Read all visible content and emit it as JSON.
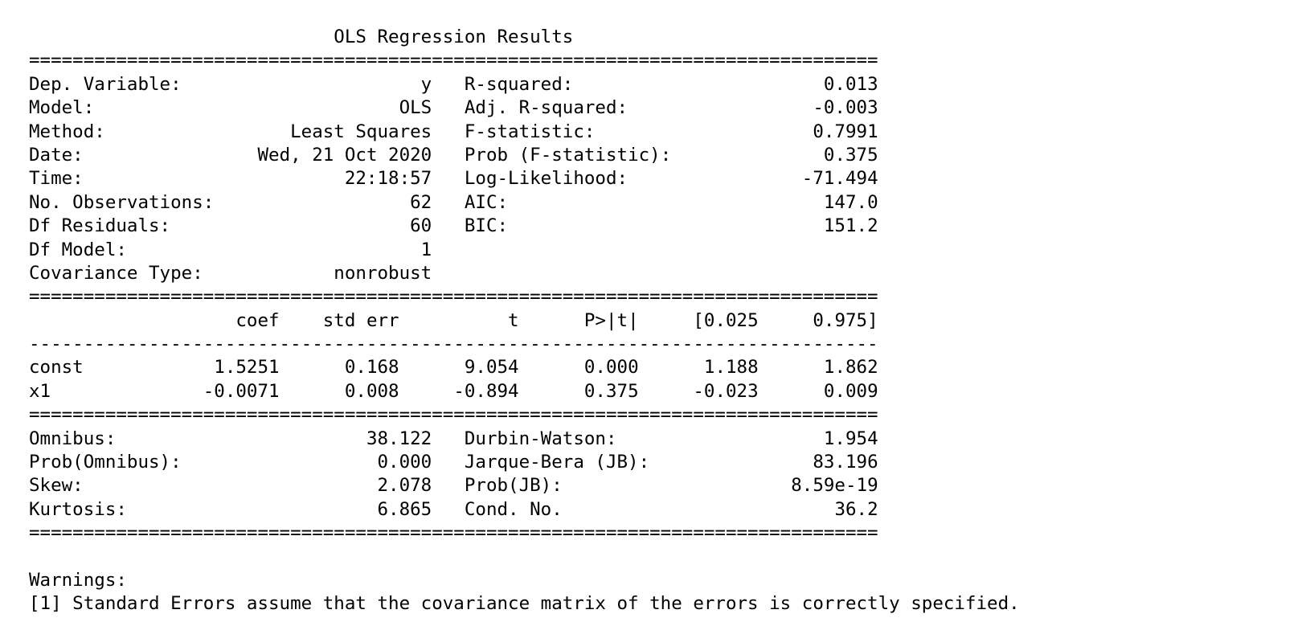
{
  "title": "OLS Regression Results",
  "summary": {
    "left": [
      {
        "label": "Dep. Variable:",
        "value": "y"
      },
      {
        "label": "Model:",
        "value": "OLS"
      },
      {
        "label": "Method:",
        "value": "Least Squares"
      },
      {
        "label": "Date:",
        "value": "Wed, 21 Oct 2020"
      },
      {
        "label": "Time:",
        "value": "22:18:57"
      },
      {
        "label": "No. Observations:",
        "value": "62"
      },
      {
        "label": "Df Residuals:",
        "value": "60"
      },
      {
        "label": "Df Model:",
        "value": "1"
      },
      {
        "label": "Covariance Type:",
        "value": "nonrobust"
      }
    ],
    "right": [
      {
        "label": "R-squared:",
        "value": "0.013"
      },
      {
        "label": "Adj. R-squared:",
        "value": "-0.003"
      },
      {
        "label": "F-statistic:",
        "value": "0.7991"
      },
      {
        "label": "Prob (F-statistic):",
        "value": "0.375"
      },
      {
        "label": "Log-Likelihood:",
        "value": "-71.494"
      },
      {
        "label": "AIC:",
        "value": "147.0"
      },
      {
        "label": "BIC:",
        "value": "151.2"
      }
    ]
  },
  "coef_table": {
    "headers": [
      "",
      "coef",
      "std err",
      "t",
      "P>|t|",
      "[0.025",
      "0.975]"
    ],
    "rows": [
      [
        "const",
        "1.5251",
        "0.168",
        "9.054",
        "0.000",
        "1.188",
        "1.862"
      ],
      [
        "x1",
        "-0.0071",
        "0.008",
        "-0.894",
        "0.375",
        "-0.023",
        "0.009"
      ]
    ]
  },
  "diagnostics": {
    "left": [
      {
        "label": "Omnibus:",
        "value": "38.122"
      },
      {
        "label": "Prob(Omnibus):",
        "value": "0.000"
      },
      {
        "label": "Skew:",
        "value": "2.078"
      },
      {
        "label": "Kurtosis:",
        "value": "6.865"
      }
    ],
    "right": [
      {
        "label": "Durbin-Watson:",
        "value": "1.954"
      },
      {
        "label": "Jarque-Bera (JB):",
        "value": "83.196"
      },
      {
        "label": "Prob(JB):",
        "value": "8.59e-19"
      },
      {
        "label": "Cond. No.",
        "value": "36.2"
      }
    ]
  },
  "warnings": {
    "heading": "Warnings:",
    "items": [
      "[1] Standard Errors assume that the covariance matrix of the errors is correctly specified."
    ]
  }
}
